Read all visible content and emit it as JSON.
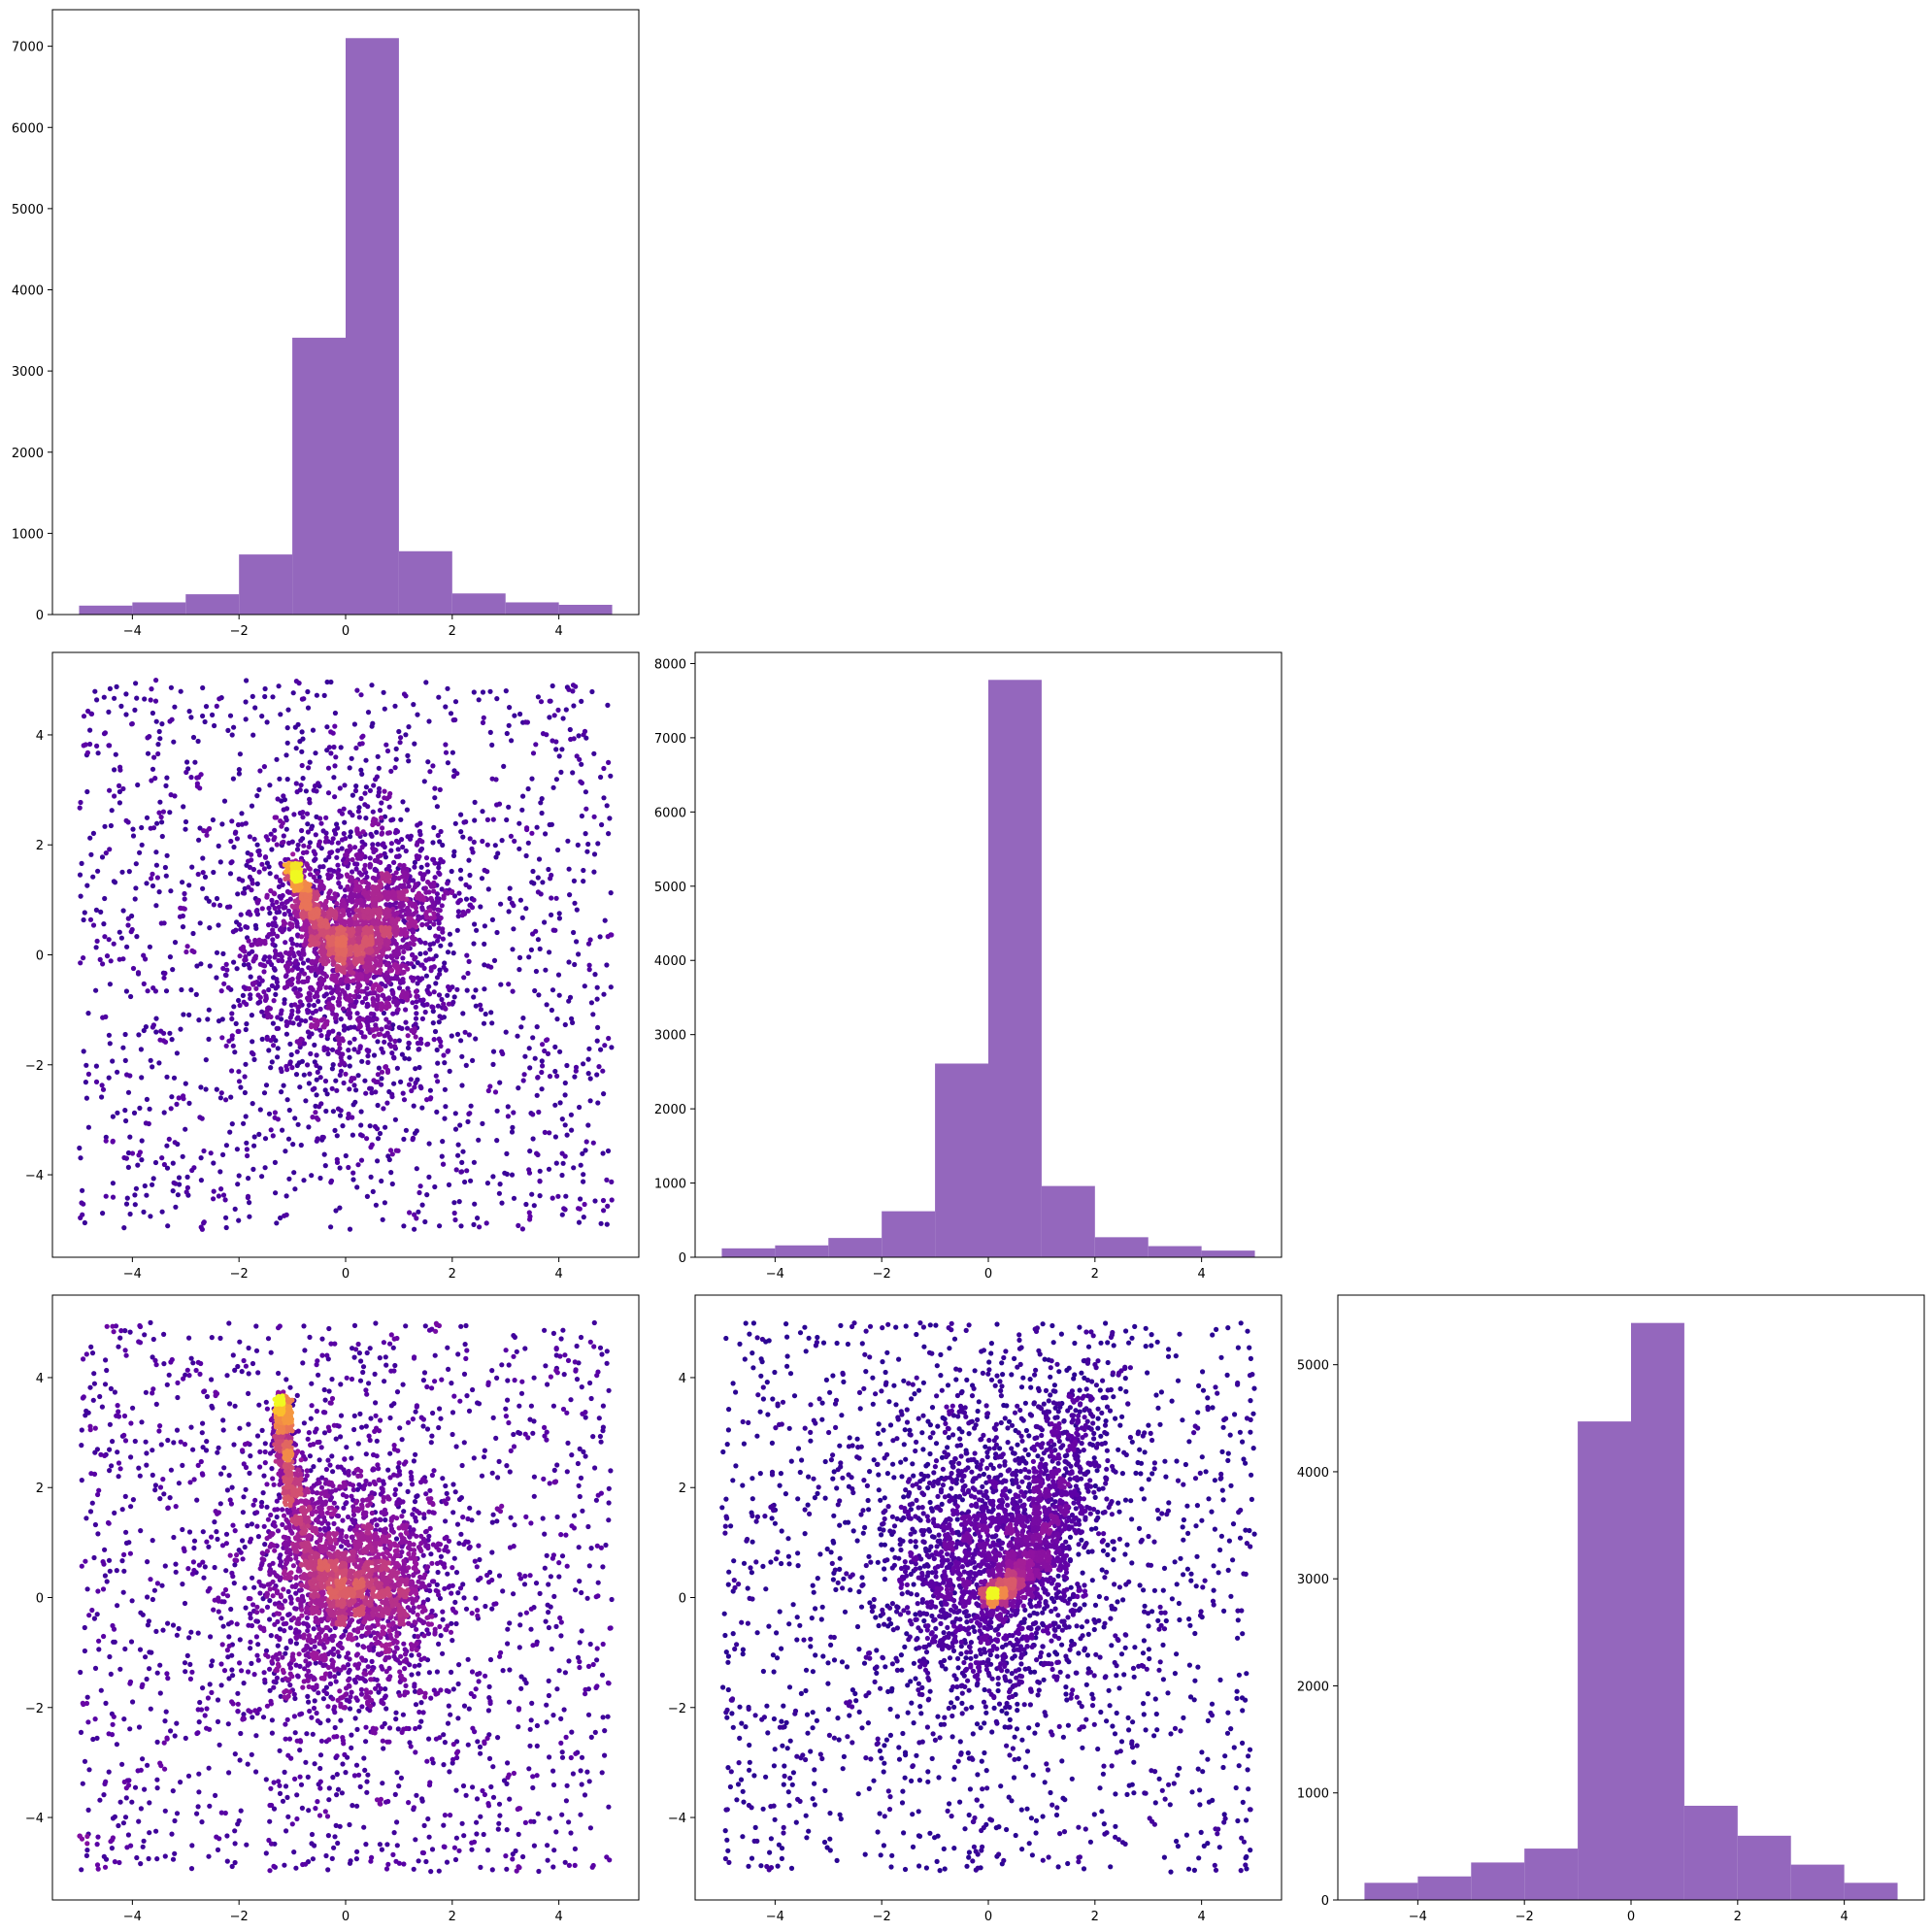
{
  "figure": {
    "layout": "3x3 lower-triangular corner plot",
    "bar_color": "#9467bd",
    "scatter_colormap": "plasma",
    "scatter_colormap_stops": [
      "#0d0887",
      "#5c01a6",
      "#9c179e",
      "#cc4778",
      "#ed7953",
      "#fdb42f",
      "#f0f921"
    ]
  },
  "chart_data": [
    {
      "id": "hist-1",
      "type": "bar",
      "position": "row 1, col 1",
      "title": "",
      "xlabel": "",
      "ylabel": "",
      "bin_edges": [
        -5,
        -4,
        -3,
        -2,
        -1,
        0,
        1,
        2,
        3,
        4,
        5
      ],
      "values": [
        110,
        150,
        250,
        740,
        3410,
        7100,
        780,
        260,
        150,
        120
      ],
      "xlim": [
        -5.5,
        5.5
      ],
      "ylim": [
        0,
        7450
      ],
      "x_ticks": [
        -4,
        -2,
        0,
        2,
        4
      ],
      "x_tick_labels": [
        "−4",
        "−2",
        "0",
        "2",
        "4"
      ],
      "y_ticks": [
        0,
        1000,
        2000,
        3000,
        4000,
        5000,
        6000,
        7000
      ],
      "y_tick_labels": [
        "0",
        "1000",
        "2000",
        "3000",
        "4000",
        "5000",
        "6000",
        "7000"
      ],
      "grid": false,
      "legend": "none"
    },
    {
      "id": "scatter-2-1",
      "type": "scatter",
      "position": "row 2, col 1",
      "title": "",
      "xlabel": "",
      "ylabel": "",
      "description_of_points": "about 3,000 uniform background points in [-5, 5] x [-5, 5], a dense Gaussian core near (0, 0), and a bright crescent arm curving from (-1.0, 1.6) down through (0.2, 0.0) up to (1.2, 1.3); color encodes point density",
      "point_count_estimate": 10000,
      "dense_arm_points": [
        [
          -1.0,
          1.6
        ],
        [
          -0.7,
          0.9
        ],
        [
          -0.4,
          0.35
        ],
        [
          0.0,
          0.0
        ],
        [
          0.25,
          0.05
        ],
        [
          0.5,
          0.3
        ],
        [
          0.8,
          0.7
        ],
        [
          1.0,
          1.0
        ],
        [
          1.2,
          1.35
        ]
      ],
      "xlim": [
        -5.5,
        5.5
      ],
      "ylim": [
        -5.5,
        5.5
      ],
      "x_ticks": [
        -4,
        -2,
        0,
        2,
        4
      ],
      "x_tick_labels": [
        "−4",
        "−2",
        "0",
        "2",
        "4"
      ],
      "y_ticks": [
        -4,
        -2,
        0,
        2,
        4
      ],
      "y_tick_labels": [
        "−4",
        "−2",
        "0",
        "2",
        "4"
      ],
      "grid": false,
      "legend": "none"
    },
    {
      "id": "hist-2",
      "type": "bar",
      "position": "row 2, col 2",
      "title": "",
      "xlabel": "",
      "ylabel": "",
      "bin_edges": [
        -5,
        -4,
        -3,
        -2,
        -1,
        0,
        1,
        2,
        3,
        4,
        5
      ],
      "values": [
        120,
        160,
        260,
        620,
        2610,
        7780,
        960,
        270,
        150,
        90
      ],
      "xlim": [
        -5.5,
        5.5
      ],
      "ylim": [
        0,
        8150
      ],
      "x_ticks": [
        -4,
        -2,
        0,
        2,
        4
      ],
      "x_tick_labels": [
        "−4",
        "−2",
        "0",
        "2",
        "4"
      ],
      "y_ticks": [
        0,
        1000,
        2000,
        3000,
        4000,
        5000,
        6000,
        7000,
        8000
      ],
      "y_tick_labels": [
        "0",
        "1000",
        "2000",
        "3000",
        "4000",
        "5000",
        "6000",
        "7000",
        "8000"
      ],
      "grid": false,
      "legend": "none"
    },
    {
      "id": "scatter-3-1",
      "type": "scatter",
      "position": "row 3, col 1",
      "title": "",
      "xlabel": "",
      "ylabel": "",
      "description_of_points": "uniform background points in [-5, 5] x [-5, 5], a dense core elongated vertically around x = 0, and a bright arm from (-1.2, 3.6) down to (0.0, 0.0) then to (1.0, 0.4); color encodes point density",
      "point_count_estimate": 10000,
      "dense_arm_points": [
        [
          -1.2,
          3.6
        ],
        [
          -1.1,
          2.5
        ],
        [
          -0.8,
          1.3
        ],
        [
          -0.4,
          0.3
        ],
        [
          0.0,
          0.0
        ],
        [
          0.4,
          0.1
        ],
        [
          0.8,
          0.3
        ],
        [
          1.0,
          0.45
        ]
      ],
      "xlim": [
        -5.5,
        5.5
      ],
      "ylim": [
        -5.5,
        5.5
      ],
      "x_ticks": [
        -4,
        -2,
        0,
        2,
        4
      ],
      "x_tick_labels": [
        "−4",
        "−2",
        "0",
        "2",
        "4"
      ],
      "y_ticks": [
        -4,
        -2,
        0,
        2,
        4
      ],
      "y_tick_labels": [
        "−4",
        "−2",
        "0",
        "2",
        "4"
      ],
      "grid": false,
      "legend": "none"
    },
    {
      "id": "scatter-3-2",
      "type": "scatter",
      "position": "row 3, col 2",
      "title": "",
      "xlabel": "",
      "ylabel": "",
      "description_of_points": "uniform background points in [-5, 5] x [-5, 5], a dense core near (0, 0), and a bright arm rising diagonally from (0.0, 0.0) up to (1.8, 4.0); color encodes point density",
      "point_count_estimate": 10000,
      "dense_arm_points": [
        [
          0.0,
          0.0
        ],
        [
          0.3,
          0.15
        ],
        [
          0.6,
          0.4
        ],
        [
          0.9,
          0.9
        ],
        [
          1.2,
          1.6
        ],
        [
          1.5,
          2.6
        ],
        [
          1.8,
          3.8
        ]
      ],
      "xlim": [
        -5.5,
        5.5
      ],
      "ylim": [
        -5.5,
        5.5
      ],
      "x_ticks": [
        -4,
        -2,
        0,
        2,
        4
      ],
      "x_tick_labels": [
        "−4",
        "−2",
        "0",
        "2",
        "4"
      ],
      "y_ticks": [
        -4,
        -2,
        0,
        2,
        4
      ],
      "y_tick_labels": [
        "−4",
        "−2",
        "0",
        "2",
        "4"
      ],
      "grid": false,
      "legend": "none"
    },
    {
      "id": "hist-3",
      "type": "bar",
      "position": "row 3, col 3",
      "title": "",
      "xlabel": "",
      "ylabel": "",
      "bin_edges": [
        -5,
        -4,
        -3,
        -2,
        -1,
        0,
        1,
        2,
        3,
        4,
        5
      ],
      "values": [
        160,
        220,
        350,
        480,
        4470,
        5390,
        880,
        600,
        330,
        160
      ],
      "xlim": [
        -5.5,
        5.5
      ],
      "ylim": [
        0,
        5650
      ],
      "x_ticks": [
        -4,
        -2,
        0,
        2,
        4
      ],
      "x_tick_labels": [
        "−4",
        "−2",
        "0",
        "2",
        "4"
      ],
      "y_ticks": [
        0,
        1000,
        2000,
        3000,
        4000,
        5000
      ],
      "y_tick_labels": [
        "0",
        "1000",
        "2000",
        "3000",
        "4000",
        "5000"
      ],
      "grid": false,
      "legend": "none"
    }
  ]
}
